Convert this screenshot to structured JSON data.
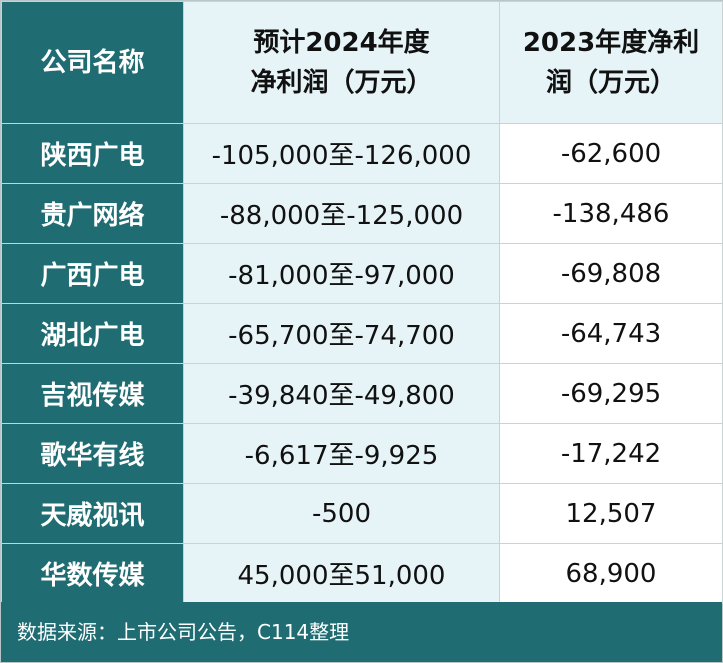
{
  "header": {
    "col_name": "公司名称",
    "col_forecast_line1": "预计2024年度",
    "col_forecast_line2": "净利润（万元）",
    "col_2023_line1": "2023年度净利",
    "col_2023_line2": "润（万元）"
  },
  "rows": [
    {
      "name": "陕西广电",
      "forecast": "-105,000至-126,000",
      "profit_2023": "-62,600"
    },
    {
      "name": "贵广网络",
      "forecast": "-88,000至-125,000",
      "profit_2023": "-138,486"
    },
    {
      "name": "广西广电",
      "forecast": "-81,000至-97,000",
      "profit_2023": "-69,808"
    },
    {
      "name": "湖北广电",
      "forecast": "-65,700至-74,700",
      "profit_2023": "-64,743"
    },
    {
      "name": "吉视传媒",
      "forecast": "-39,840至-49,800",
      "profit_2023": "-69,295"
    },
    {
      "name": "歌华有线",
      "forecast": "-6,617至-9,925",
      "profit_2023": "-17,242"
    },
    {
      "name": "天威视讯",
      "forecast": "-500",
      "profit_2023": "12,507"
    },
    {
      "name": "华数传媒",
      "forecast": "45,000至51,000",
      "profit_2023": "68,900"
    }
  ],
  "footer": {
    "source": "数据来源：上市公司公告，C114整理"
  },
  "colors": {
    "header_dark": "#1f6d73",
    "header_light": "#e6f4f7"
  }
}
